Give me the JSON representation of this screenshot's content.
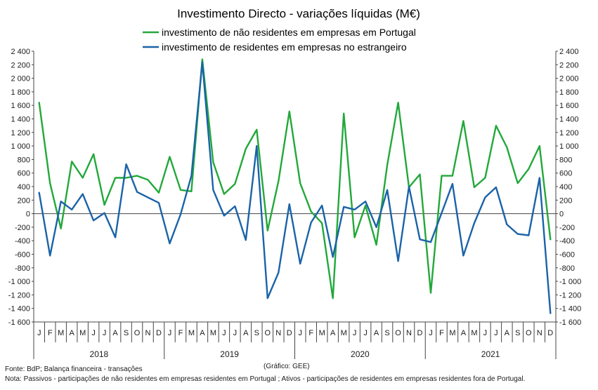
{
  "title": "Investimento Directo - variações líquidas (M€)",
  "source": "Fonte: BdP; Balança financeira - transações",
  "credit": "(Gráfico: GEE)",
  "note": "Nota: Passivos - participações de não residentes em empresas residentes em Portugal ; Ativos - participações de residentes em empresas residentes fora de Portugal.",
  "colors": {
    "green": "#22a83a",
    "blue": "#1a63a8"
  },
  "chart_data": {
    "type": "line",
    "title": "Investimento Directo - variações líquidas (M€)",
    "years": [
      "2018",
      "2019",
      "2020",
      "2021"
    ],
    "months": [
      "J",
      "F",
      "M",
      "A",
      "M",
      "J",
      "J",
      "A",
      "S",
      "O",
      "N",
      "D"
    ],
    "ylim": [
      -1600,
      2400
    ],
    "y_ticks": [
      "2 400",
      "2 200",
      "2 000",
      "1 800",
      "1 600",
      "1 400",
      "1 200",
      "1 000",
      "800",
      "600",
      "400",
      "200",
      "0",
      "-200",
      "-400",
      "-600",
      "-800",
      "-1 000",
      "-1 200",
      "-1 400",
      "-1 600"
    ],
    "grid": false,
    "secondary_axis": true,
    "series": [
      {
        "name": "investimento de não residentes em empresas em Portugal",
        "color": "#22a83a",
        "values": [
          1640,
          450,
          -220,
          770,
          530,
          880,
          130,
          530,
          530,
          560,
          500,
          310,
          840,
          350,
          330,
          2280,
          760,
          290,
          440,
          960,
          1240,
          -250,
          480,
          1510,
          450,
          30,
          -140,
          -1250,
          1480,
          -350,
          120,
          -460,
          720,
          1640,
          390,
          580,
          -1170,
          560,
          560,
          1370,
          390,
          530,
          1300,
          980,
          450,
          660,
          1000,
          -380
        ]
      },
      {
        "name": "investimento de residentes em empresas no estrangeiro",
        "color": "#1a63a8",
        "values": [
          310,
          -620,
          180,
          60,
          290,
          -100,
          10,
          -350,
          730,
          320,
          240,
          160,
          -440,
          -10,
          560,
          2240,
          350,
          -30,
          110,
          -390,
          1000,
          -1250,
          -870,
          140,
          -740,
          -130,
          120,
          -640,
          100,
          60,
          180,
          -200,
          350,
          -700,
          400,
          -380,
          -420,
          10,
          440,
          -620,
          -140,
          240,
          390,
          -160,
          -300,
          -320,
          530,
          -1470
        ]
      }
    ]
  }
}
